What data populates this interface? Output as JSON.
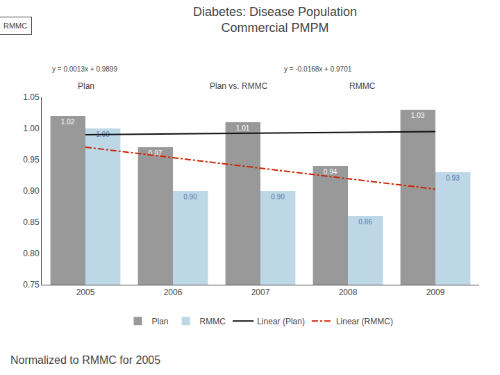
{
  "chart_data": {
    "type": "bar",
    "title": "Diabetes: Disease Population",
    "subtitle": "Commercial PMPM",
    "categories": [
      "2005",
      "2006",
      "2007",
      "2008",
      "2009"
    ],
    "series": [
      {
        "name": "Plan",
        "type": "bar",
        "color": "#999999",
        "values": [
          1.02,
          0.97,
          1.01,
          0.94,
          1.03
        ]
      },
      {
        "name": "RMMC",
        "type": "bar",
        "color": "#BDD7E7",
        "values": [
          1.0,
          0.9,
          0.9,
          0.86,
          0.93
        ],
        "value_labels": [
          "1.00",
          "0.90",
          "0.90",
          "0.86",
          "0.93"
        ]
      },
      {
        "name": "Linear (Plan)",
        "type": "line",
        "color": "#111111",
        "line_style": "solid",
        "values": [
          0.9899,
          0.9912,
          0.9925,
          0.9938,
          0.9951
        ]
      },
      {
        "name": "Linear (RMMC)",
        "type": "line",
        "color": "#CC2200",
        "line_style": "dashdot",
        "values": [
          0.9701,
          0.9533,
          0.9365,
          0.9197,
          0.9029
        ]
      }
    ],
    "ylim": [
      0.75,
      1.05
    ],
    "yticks": [
      0.75,
      {
        "value": 0.8,
        "label": "0.80"
      },
      0.85,
      {
        "value": 0.9,
        "label": "0.90"
      },
      0.95,
      {
        "value": 1.0,
        "label": "1.00"
      },
      1.05
    ],
    "grid": false,
    "legend": "bottom",
    "data_labels": true,
    "annotations": [
      "y = 0.0013x + 0.9899",
      "y = -0.0168x + 0.9701",
      "Plan",
      "Plan vs. RMMC",
      "RMMC",
      "RMMC",
      "Normalized to RMMC for 2005"
    ]
  }
}
